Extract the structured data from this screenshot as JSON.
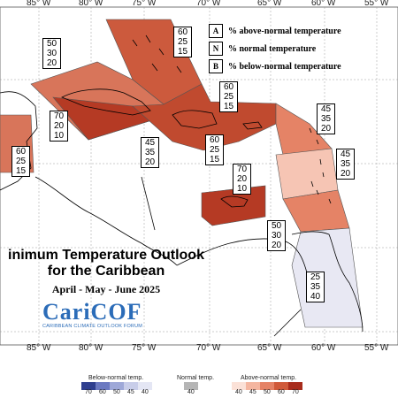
{
  "longitude_labels": [
    "85° W",
    "80° W",
    "75° W",
    "70° W",
    "65° W",
    "60° W",
    "55° W"
  ],
  "key": [
    {
      "letter": "A",
      "text": "% above-normal temperature"
    },
    {
      "letter": "N",
      "text": "% normal temperature"
    },
    {
      "letter": "B",
      "text": "% below-normal temperature"
    }
  ],
  "probability_boxes": [
    {
      "a": "50",
      "n": "30",
      "b": "20"
    },
    {
      "a": "60",
      "n": "25",
      "b": "15"
    },
    {
      "a": "60",
      "n": "25",
      "b": "15"
    },
    {
      "a": "70",
      "n": "20",
      "b": "10"
    },
    {
      "a": "45",
      "n": "35",
      "b": "20"
    },
    {
      "a": "60",
      "n": "25",
      "b": "15"
    },
    {
      "a": "60",
      "n": "25",
      "b": "15"
    },
    {
      "a": "45",
      "n": "35",
      "b": "20"
    },
    {
      "a": "45",
      "n": "35",
      "b": "20"
    },
    {
      "a": "70",
      "n": "20",
      "b": "10"
    },
    {
      "a": "50",
      "n": "30",
      "b": "20"
    },
    {
      "a": "25",
      "n": "35",
      "b": "40"
    }
  ],
  "title": {
    "line1": "inimum Temperature Outlook",
    "line2": "for the Caribbean",
    "line3": "April - May - June 2025"
  },
  "logo": {
    "word": "CariCOF",
    "subtitle": "CARIBBEAN CLIMATE OUTLOOK FORUM"
  },
  "scale": {
    "below_label": "Below-normal temp.",
    "normal_label": "Normal temp.",
    "above_label": "Above-normal temp.",
    "below_values": [
      "70",
      "60",
      "50",
      "45",
      "40"
    ],
    "normal_value": "40",
    "above_values": [
      "40",
      "45",
      "50",
      "60",
      "70"
    ],
    "below_colors": [
      "#2f3f8f",
      "#6b79c1",
      "#9ea8d8",
      "#c8cde9",
      "#e4e6f4"
    ],
    "normal_color": "#b5b5b5",
    "above_colors": [
      "#fbe1d7",
      "#f4b6a0",
      "#e58366",
      "#d05a3a",
      "#a82c1c"
    ]
  },
  "colors": {
    "above_70": "#b53a24",
    "above_60": "#cc5a3d",
    "above_50": "#e5866a",
    "above_45": "#f6c5b4",
    "below_40": "#e8e8f3"
  }
}
